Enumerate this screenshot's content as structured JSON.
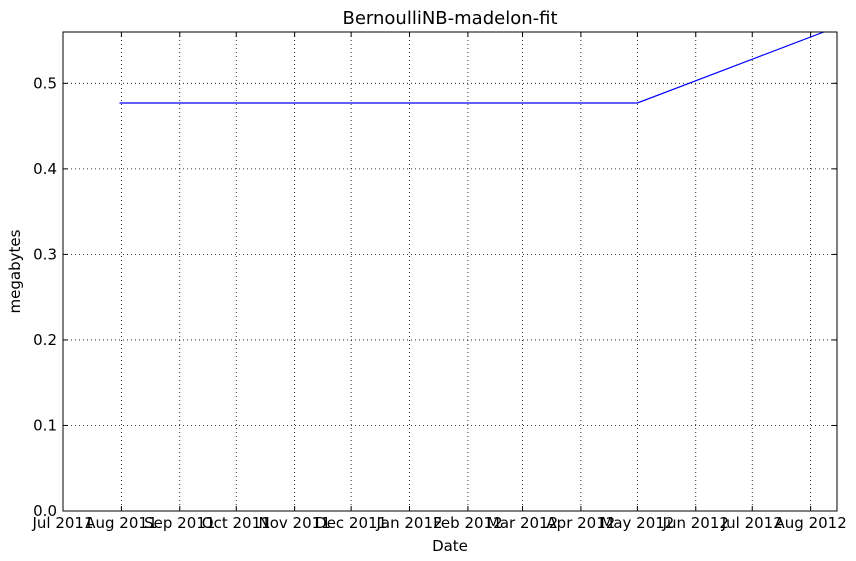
{
  "chart_data": {
    "type": "line",
    "title": "BernoulliNB-madelon-fit",
    "xlabel": "Date",
    "ylabel": "megabytes",
    "x_axis_type": "date",
    "xlim": [
      "2011-07-01",
      "2012-08-15"
    ],
    "ylim": [
      0,
      0.56
    ],
    "grid": true,
    "x_ticks": [
      {
        "date": "2011-07-01",
        "label": "Jul 2011"
      },
      {
        "date": "2011-08-01",
        "label": "Aug 2011"
      },
      {
        "date": "2011-09-01",
        "label": "Sep 2011"
      },
      {
        "date": "2011-10-01",
        "label": "Oct 2011"
      },
      {
        "date": "2011-11-01",
        "label": "Nov 2011"
      },
      {
        "date": "2011-12-01",
        "label": "Dec 2011"
      },
      {
        "date": "2012-01-01",
        "label": "Jan 2012"
      },
      {
        "date": "2012-02-01",
        "label": "Feb 2012"
      },
      {
        "date": "2012-03-01",
        "label": "Mar 2012"
      },
      {
        "date": "2012-04-01",
        "label": "Apr 2012"
      },
      {
        "date": "2012-05-01",
        "label": "May 2012"
      },
      {
        "date": "2012-06-01",
        "label": "Jun 2012"
      },
      {
        "date": "2012-07-01",
        "label": "Jul 2012"
      },
      {
        "date": "2012-08-01",
        "label": "Aug 2012"
      }
    ],
    "y_ticks": [
      0.0,
      0.1,
      0.2,
      0.3,
      0.4,
      0.5
    ],
    "y_tick_labels": [
      "0.0",
      "0.1",
      "0.2",
      "0.3",
      "0.4",
      "0.5"
    ],
    "series": [
      {
        "color": "#0000ff",
        "points": [
          {
            "x": "2011-07-31",
            "y": 0.477
          },
          {
            "x": "2012-05-01",
            "y": 0.477
          },
          {
            "x": "2012-08-08",
            "y": 0.56
          }
        ]
      }
    ]
  }
}
